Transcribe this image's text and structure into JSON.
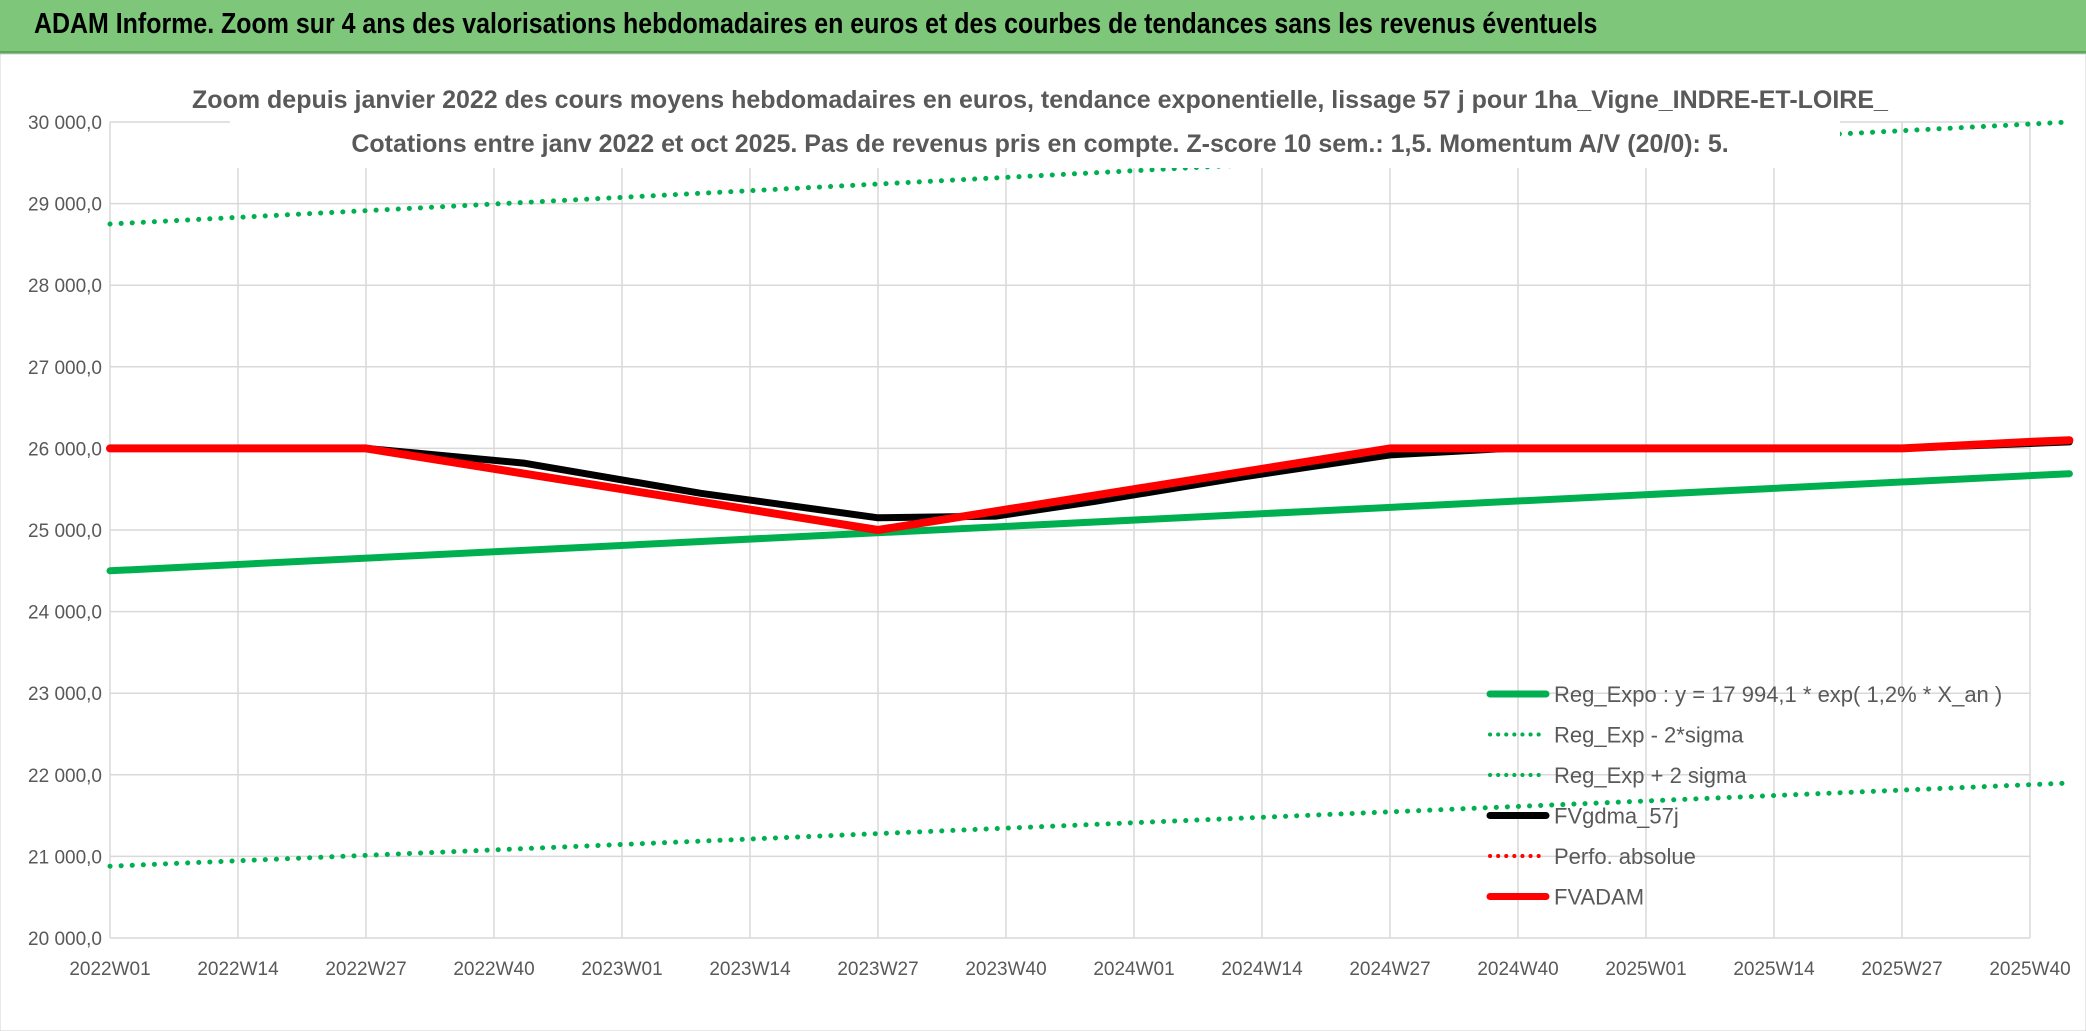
{
  "banner": {
    "text": "ADAM Informe. Zoom sur 4 ans des valorisations hebdomadaires en euros et des courbes de tendances sans les revenus éventuels"
  },
  "colors": {
    "banner_bg": "#7dc67a",
    "green": "#00b050",
    "black": "#000000",
    "red": "#ff0000",
    "grid": "#d9d9d9"
  },
  "chart_data": {
    "type": "line",
    "title_lines": [
      "Zoom depuis janvier 2022 des cours moyens hebdomadaires en euros, tendance exponentielle, lissage 57 j pour 1ha_Vigne_INDRE-ET-LOIRE_",
      "Cotations entre janv 2022 et oct 2025. Pas de revenus pris en compte. Z-score 10 sem.: 1,5. Momentum A/V (20/0): 5."
    ],
    "xlabel": "",
    "ylabel": "",
    "ylim": [
      20000,
      30000
    ],
    "y_ticks": [
      "20 000,0",
      "21 000,0",
      "22 000,0",
      "23 000,0",
      "24 000,0",
      "25 000,0",
      "26 000,0",
      "27 000,0",
      "28 000,0",
      "29 000,0",
      "30 000,0"
    ],
    "x_ticks": [
      "2022W01",
      "2022W14",
      "2022W27",
      "2022W40",
      "2023W01",
      "2023W14",
      "2023W27",
      "2023W40",
      "2024W01",
      "2024W14",
      "2024W27",
      "2024W40",
      "2025W01",
      "2025W14",
      "2025W27",
      "2025W40"
    ],
    "grid": true,
    "legend_position": "bottom-right",
    "series": [
      {
        "name": "Reg_Expo : y = 17 994,1 * exp( 1,2% *  X_an )",
        "style": "solid",
        "color": "#00b050",
        "x": [
          0,
          199
        ],
        "y": [
          24500,
          25690
        ]
      },
      {
        "name": "Reg_Exp - 2*sigma",
        "style": "dotted",
        "color": "#00b050",
        "x": [
          0,
          199
        ],
        "y": [
          20880,
          21900
        ]
      },
      {
        "name": "Reg_Exp + 2 sigma",
        "style": "dotted",
        "color": "#00b050",
        "x": [
          0,
          199
        ],
        "y": [
          28750,
          30000
        ]
      },
      {
        "name": "FVgdma_57j",
        "style": "solid",
        "color": "#000000",
        "x": [
          0,
          26,
          42,
          60,
          78,
          90,
          100,
          115,
          130,
          142,
          156,
          169,
          182,
          195,
          199
        ],
        "y": [
          26000,
          26000,
          25820,
          25450,
          25150,
          25170,
          25350,
          25650,
          25920,
          26000,
          26000,
          26000,
          26000,
          26060,
          26080
        ]
      },
      {
        "name": "Perfo. absolue",
        "style": "dotted",
        "color": "#ff0000",
        "x": [],
        "y": []
      },
      {
        "name": "FVADAM",
        "style": "solid",
        "color": "#ff0000",
        "x": [
          0,
          26,
          52,
          78,
          104,
          130,
          156,
          169,
          182,
          195,
          199
        ],
        "y": [
          26000,
          26000,
          25500,
          25000,
          25500,
          26000,
          26000,
          26000,
          26000,
          26080,
          26100
        ]
      }
    ]
  }
}
